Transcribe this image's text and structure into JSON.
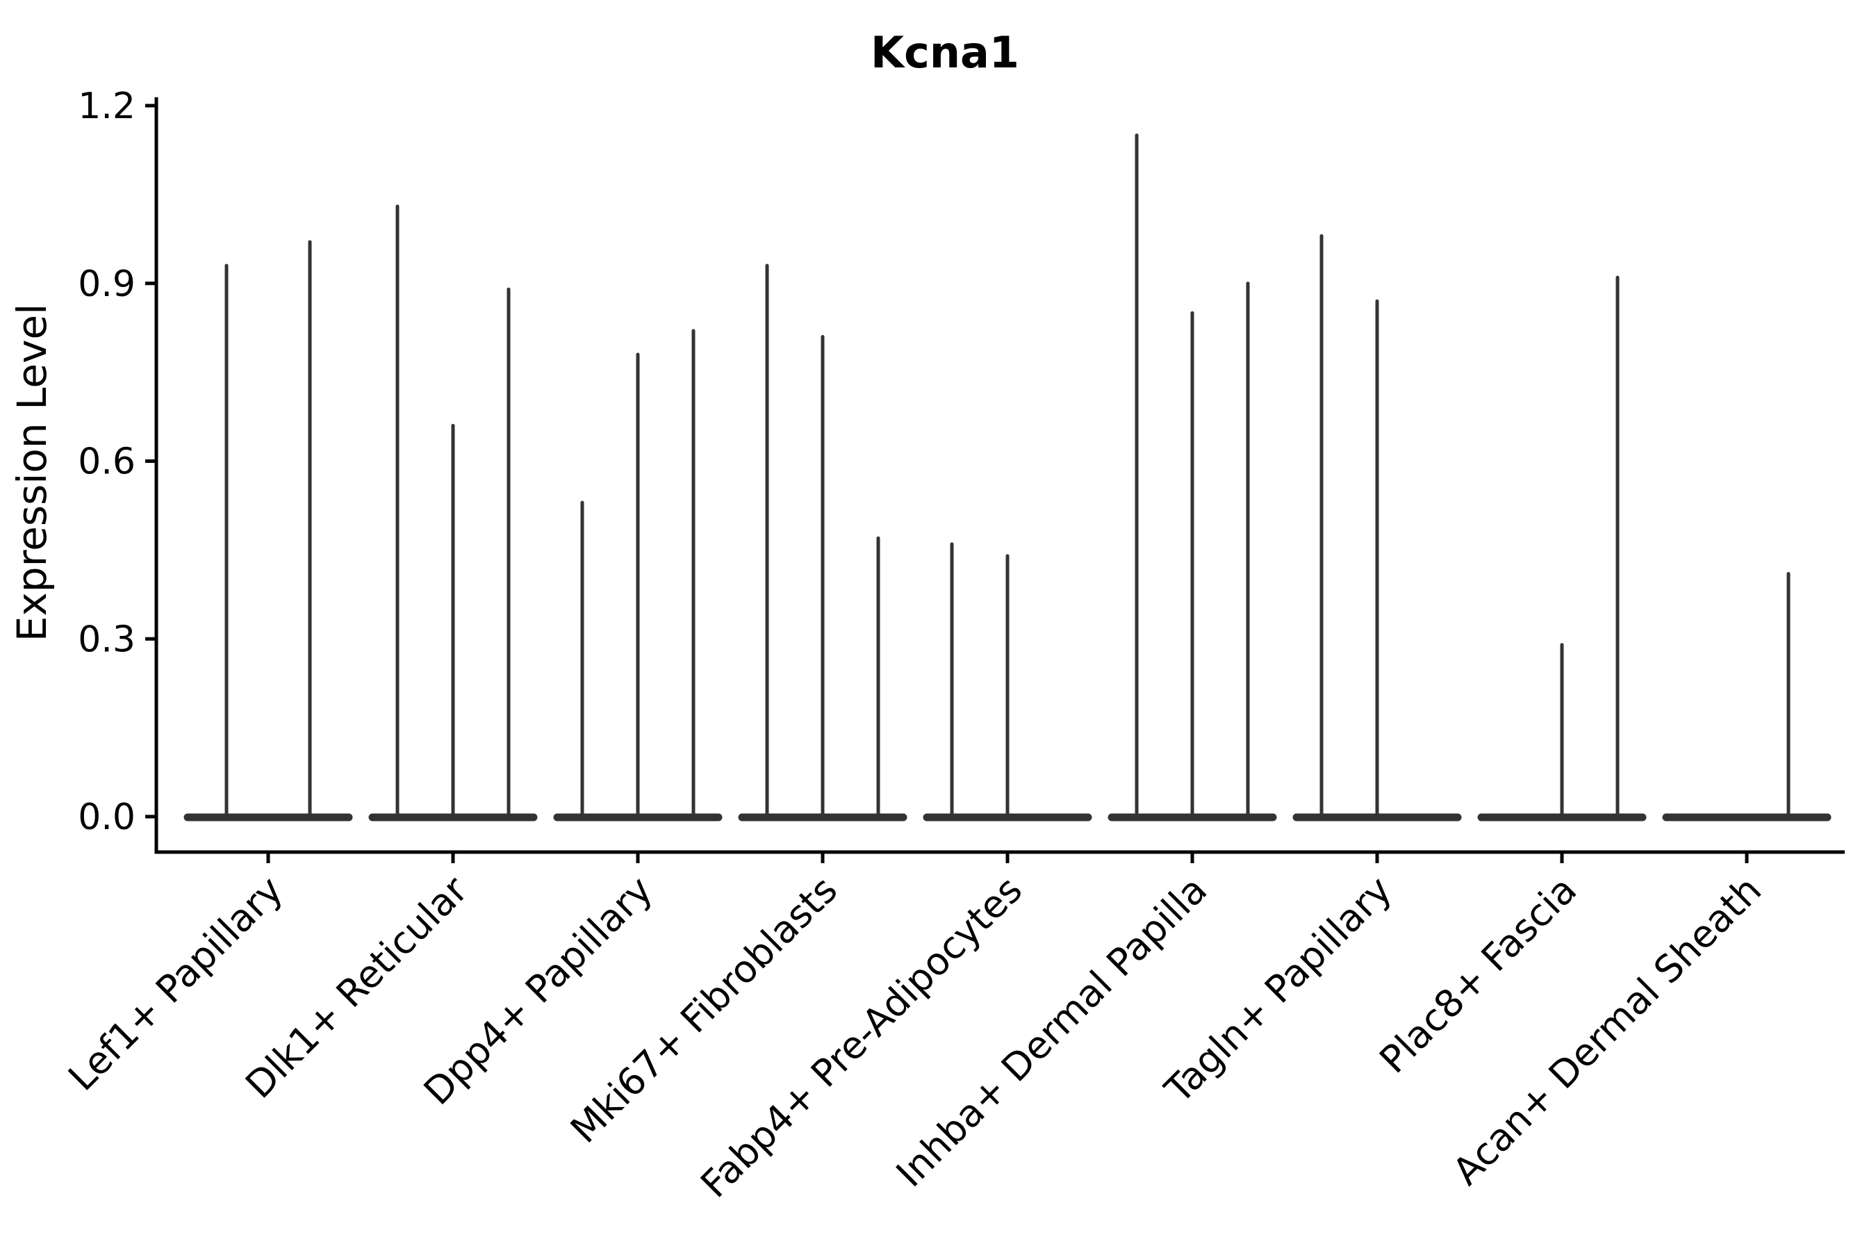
{
  "chart_data": {
    "type": "violin",
    "title": "Kcna1",
    "ylabel": "Expression Level",
    "xlabel": "",
    "grid": false,
    "legend_position": "none",
    "background_color": "#ffffff",
    "axis_color": "#000000",
    "violin_color": "#333333",
    "ytick_labels": [
      "0.0",
      "0.3",
      "0.6",
      "0.9",
      "1.2"
    ],
    "ytick_values": [
      0.0,
      0.3,
      0.6,
      0.9,
      1.2
    ],
    "ylim": [
      -0.06,
      1.21
    ],
    "categories": [
      "Lef1+ Papillary",
      "Dlk1+ Reticular",
      "Dpp4+ Papillary",
      "Mki67+ Fibroblasts",
      "Fabp4+ Pre-Adipocytes",
      "Inhba+ Dermal Papilla",
      "Tagln+ Papillary",
      "Plac8+ Fascia",
      "Acan+ Dermal Sheath"
    ],
    "groups": [
      {
        "label": "Lef1+ Papillary",
        "violins": [
          {
            "dx": -60,
            "max": 0.93
          },
          {
            "dx": 60,
            "max": 0.97
          }
        ]
      },
      {
        "label": "Dlk1+ Reticular",
        "violins": [
          {
            "dx": -80,
            "max": 1.03
          },
          {
            "dx": 0,
            "max": 0.66
          },
          {
            "dx": 80,
            "max": 0.89
          }
        ]
      },
      {
        "label": "Dpp4+ Papillary",
        "violins": [
          {
            "dx": -80,
            "max": 0.53
          },
          {
            "dx": 0,
            "max": 0.78
          },
          {
            "dx": 80,
            "max": 0.82
          }
        ]
      },
      {
        "label": "Mki67+ Fibroblasts",
        "violins": [
          {
            "dx": -80,
            "max": 0.93
          },
          {
            "dx": 0,
            "max": 0.81
          },
          {
            "dx": 80,
            "max": 0.47
          }
        ]
      },
      {
        "label": "Fabp4+ Pre-Adipocytes",
        "violins": [
          {
            "dx": -80,
            "max": 0.46
          },
          {
            "dx": 0,
            "max": 0.44
          }
        ]
      },
      {
        "label": "Inhba+ Dermal Papilla",
        "violins": [
          {
            "dx": -80,
            "max": 1.15
          },
          {
            "dx": 0,
            "max": 0.85
          },
          {
            "dx": 80,
            "max": 0.9
          }
        ]
      },
      {
        "label": "Tagln+ Papillary",
        "violins": [
          {
            "dx": -80,
            "max": 0.98
          },
          {
            "dx": 0,
            "max": 0.87
          }
        ]
      },
      {
        "label": "Plac8+ Fascia",
        "violins": [
          {
            "dx": 0,
            "max": 0.29
          },
          {
            "dx": 80,
            "max": 0.91
          }
        ]
      },
      {
        "label": "Acan+ Dermal Sheath",
        "violins": [
          {
            "dx": 60,
            "max": 0.41
          }
        ]
      }
    ]
  }
}
